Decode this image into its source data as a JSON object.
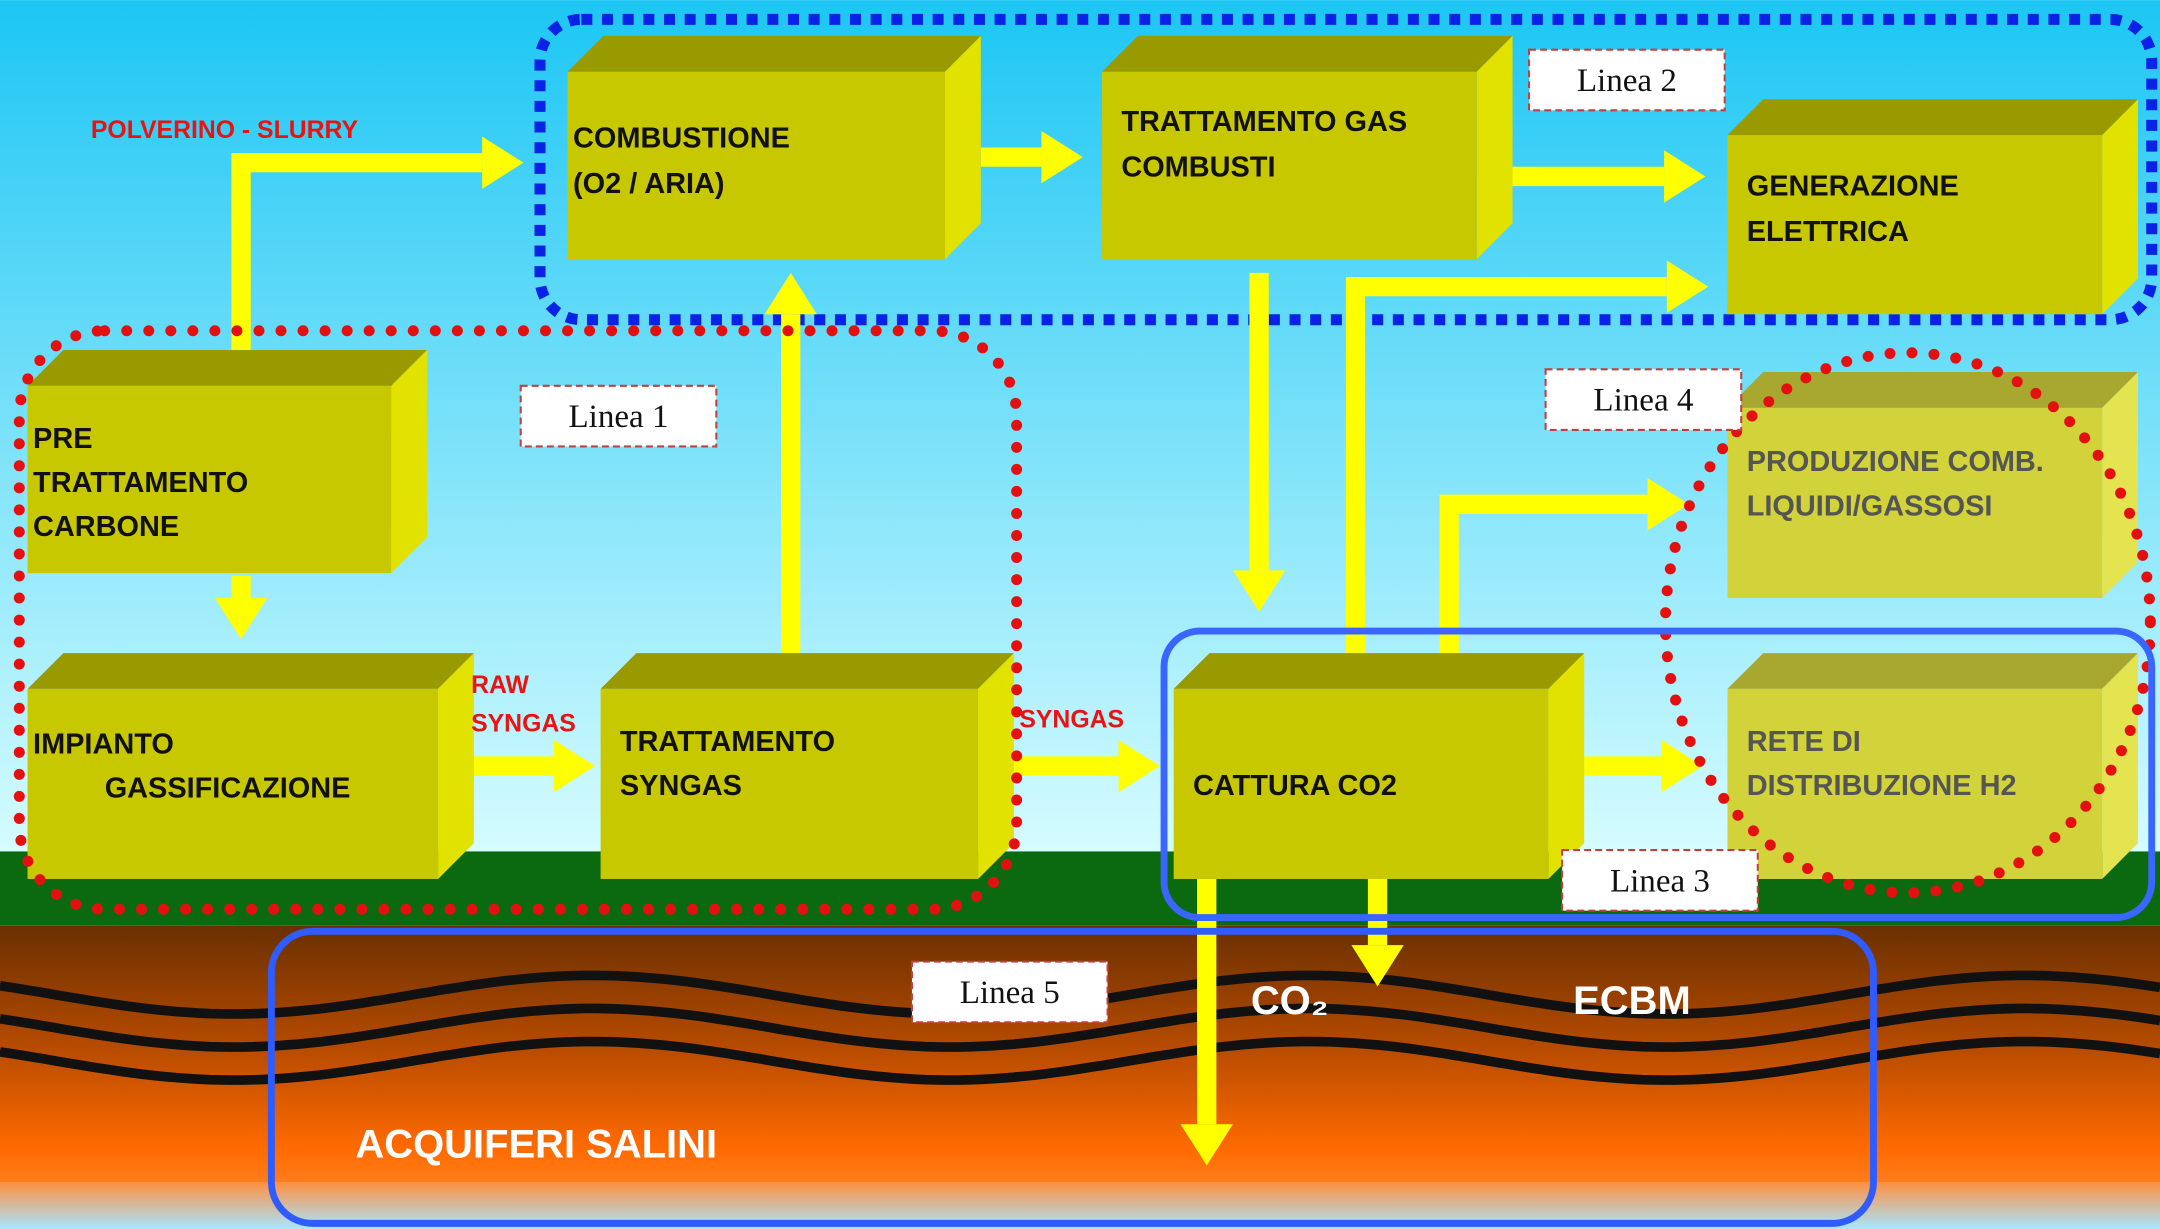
{
  "labels": {
    "feed": "POLVERINO - SLURRY",
    "raw_syngas": [
      "RAW",
      "SYNGAS"
    ],
    "syngas": "SYNGAS"
  },
  "nodes": [
    {
      "lines": [
        "COMBUSTIONE",
        "(O2 / ARIA)"
      ]
    },
    {
      "lines": [
        "TRATTAMENTO GAS",
        "COMBUSTI"
      ]
    },
    {
      "lines": [
        "GENERAZIONE",
        "ELETTRICA"
      ]
    },
    {
      "lines": [
        "PRE",
        "TRATTAMENTO",
        " CARBONE"
      ]
    },
    {
      "lines": [
        "IMPIANTO",
        "GASSIFICAZIONE"
      ]
    },
    {
      "lines": [
        "TRATTAMENTO",
        "SYNGAS"
      ]
    },
    {
      "lines": [
        "CATTURA CO2"
      ]
    },
    {
      "lines": [
        "PRODUZIONE COMB.",
        "LIQUIDI/GASSOSI"
      ]
    },
    {
      "lines": [
        "RETE DI",
        "DISTRIBUZIONE H2"
      ]
    }
  ],
  "line_tags": [
    "Linea 1",
    "Linea 2",
    "Linea 3",
    "Linea 4",
    "Linea 5"
  ],
  "underground": {
    "co2": "CO₂",
    "ecbm": "ECBM",
    "aquifers": "ACQUIFERI SALINI"
  }
}
